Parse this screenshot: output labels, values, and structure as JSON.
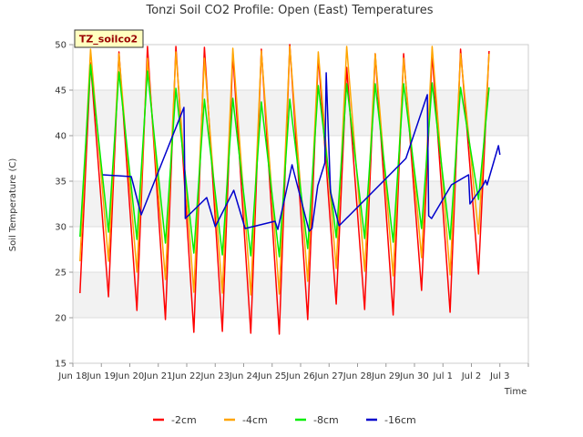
{
  "chart_data": {
    "type": "line",
    "title": "Tonzi Soil CO2 Profile: Open (East) Temperatures",
    "xlabel": "Time",
    "ylabel": "Soil Temperature (C)",
    "badge": "TZ_soilco2",
    "ylim": [
      15,
      50
    ],
    "yticks": [
      15,
      20,
      25,
      30,
      35,
      40,
      45,
      50
    ],
    "xlim": [
      0,
      16
    ],
    "xtick_positions": [
      0,
      1,
      2,
      3,
      4,
      5,
      6,
      7,
      8,
      9,
      10,
      11,
      12,
      13,
      14,
      15,
      16
    ],
    "xtick_labels": [
      "Jun 18",
      "Jun 19",
      "Jun 20",
      "Jun 21",
      "Jun 22",
      "Jun 23",
      "Jun 24",
      "Jun 25",
      "Jun 26",
      "Jun 27",
      "Jun 28",
      "Jun 29",
      "Jun 30",
      "Jul 1",
      "Jul 2",
      "Jul 3",
      ""
    ],
    "grid": "horizontal bands",
    "legend": "bottom-center",
    "series": [
      {
        "name": "-2cm",
        "color": "#ff0000",
        "daily": [
          {
            "day": 0,
            "min": 22.7,
            "max": 48.0
          },
          {
            "day": 1,
            "min": 22.3,
            "max": 49.2
          },
          {
            "day": 2,
            "min": 20.8,
            "max": 49.8
          },
          {
            "day": 3,
            "min": 19.8,
            "max": 49.8
          },
          {
            "day": 4,
            "min": 18.4,
            "max": 49.7
          },
          {
            "day": 5,
            "min": 18.5,
            "max": 49.0
          },
          {
            "day": 6,
            "min": 18.3,
            "max": 49.5
          },
          {
            "day": 7,
            "min": 18.2,
            "max": 50.0
          },
          {
            "day": 8,
            "min": 19.8,
            "max": 48.8
          },
          {
            "day": 9,
            "min": 21.5,
            "max": 47.5
          },
          {
            "day": 10,
            "min": 20.9,
            "max": 49.0
          },
          {
            "day": 11,
            "min": 20.3,
            "max": 49.0
          },
          {
            "day": 12,
            "min": 23.0,
            "max": 49.0
          },
          {
            "day": 13,
            "min": 20.6,
            "max": 49.5
          },
          {
            "day": 14,
            "min": 24.8,
            "max": 49.3
          }
        ]
      },
      {
        "name": "-4cm",
        "color": "#ffa500",
        "daily": [
          {
            "day": 0,
            "min": 26.2,
            "max": 49.5
          },
          {
            "day": 1,
            "min": 26.2,
            "max": 49.0
          },
          {
            "day": 2,
            "min": 25.0,
            "max": 48.5
          },
          {
            "day": 3,
            "min": 24.2,
            "max": 49.2
          },
          {
            "day": 4,
            "min": 22.8,
            "max": 48.5
          },
          {
            "day": 5,
            "min": 22.7,
            "max": 49.6
          },
          {
            "day": 6,
            "min": 22.5,
            "max": 49.3
          },
          {
            "day": 7,
            "min": 22.6,
            "max": 49.8
          },
          {
            "day": 8,
            "min": 24.0,
            "max": 49.2
          },
          {
            "day": 9,
            "min": 25.4,
            "max": 49.8
          },
          {
            "day": 10,
            "min": 25.1,
            "max": 49.0
          },
          {
            "day": 11,
            "min": 24.6,
            "max": 48.5
          },
          {
            "day": 12,
            "min": 26.6,
            "max": 49.8
          },
          {
            "day": 13,
            "min": 24.7,
            "max": 49.0
          },
          {
            "day": 14,
            "min": 29.2,
            "max": 49.0
          }
        ]
      },
      {
        "name": "-8cm",
        "color": "#00ee00",
        "daily": [
          {
            "day": 0,
            "min": 28.9,
            "max": 47.8
          },
          {
            "day": 1,
            "min": 29.4,
            "max": 47.0
          },
          {
            "day": 2,
            "min": 28.6,
            "max": 47.1
          },
          {
            "day": 3,
            "min": 28.2,
            "max": 45.2
          },
          {
            "day": 4,
            "min": 27.1,
            "max": 44.0
          },
          {
            "day": 5,
            "min": 26.9,
            "max": 44.1
          },
          {
            "day": 6,
            "min": 26.8,
            "max": 43.7
          },
          {
            "day": 7,
            "min": 26.7,
            "max": 44.0
          },
          {
            "day": 8,
            "min": 27.6,
            "max": 45.5
          },
          {
            "day": 9,
            "min": 28.8,
            "max": 45.7
          },
          {
            "day": 10,
            "min": 28.7,
            "max": 45.7
          },
          {
            "day": 11,
            "min": 28.3,
            "max": 45.7
          },
          {
            "day": 12,
            "min": 29.8,
            "max": 45.8
          },
          {
            "day": 13,
            "min": 28.6,
            "max": 45.3
          },
          {
            "day": 14,
            "min": 33.0,
            "max": 45.3
          }
        ]
      },
      {
        "name": "-16cm",
        "color": "#0000cc",
        "points": [
          {
            "x": 1.05,
            "y": 35.7
          },
          {
            "x": 2.05,
            "y": 35.5
          },
          {
            "x": 2.4,
            "y": 31.3
          },
          {
            "x": 3.9,
            "y": 43.1
          },
          {
            "x": 3.95,
            "y": 30.9
          },
          {
            "x": 4.7,
            "y": 33.2
          },
          {
            "x": 5.0,
            "y": 30.0
          },
          {
            "x": 5.65,
            "y": 34.0
          },
          {
            "x": 6.05,
            "y": 29.8
          },
          {
            "x": 7.1,
            "y": 30.6
          },
          {
            "x": 7.2,
            "y": 29.7
          },
          {
            "x": 7.7,
            "y": 36.8
          },
          {
            "x": 8.3,
            "y": 29.5
          },
          {
            "x": 8.4,
            "y": 29.8
          },
          {
            "x": 8.6,
            "y": 34.5
          },
          {
            "x": 8.85,
            "y": 37.0
          },
          {
            "x": 8.9,
            "y": 46.9
          },
          {
            "x": 9.05,
            "y": 33.8
          },
          {
            "x": 9.35,
            "y": 30.1
          },
          {
            "x": 11.7,
            "y": 37.5
          },
          {
            "x": 12.45,
            "y": 44.5
          },
          {
            "x": 12.5,
            "y": 31.2
          },
          {
            "x": 12.6,
            "y": 30.9
          },
          {
            "x": 13.3,
            "y": 34.6
          },
          {
            "x": 13.9,
            "y": 35.7
          },
          {
            "x": 13.95,
            "y": 32.5
          },
          {
            "x": 14.4,
            "y": 34.5
          },
          {
            "x": 14.5,
            "y": 35.1
          },
          {
            "x": 14.55,
            "y": 34.6
          },
          {
            "x": 14.95,
            "y": 38.9
          },
          {
            "x": 15.0,
            "y": 37.9
          }
        ]
      }
    ]
  }
}
